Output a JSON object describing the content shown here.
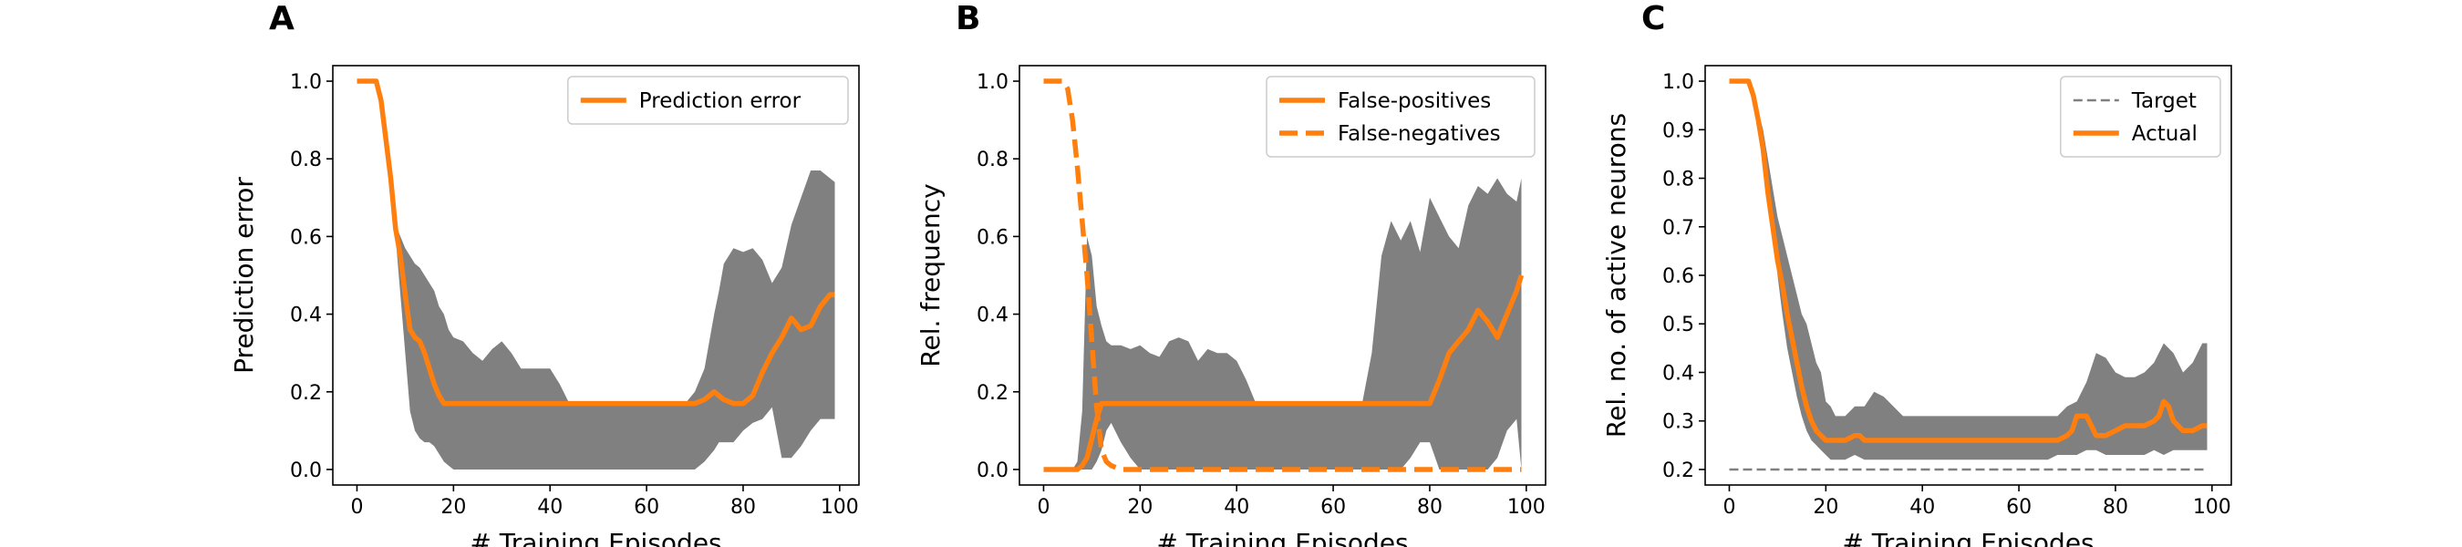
{
  "colors": {
    "line": "#ff7f0e",
    "band": "#808080",
    "target": "#808080"
  },
  "chart_data": [
    {
      "type": "line",
      "letter": "A",
      "xlabel": "# Training Episodes",
      "ylabel": "Prediction error",
      "xlim": [
        -5,
        104
      ],
      "ylim": [
        -0.04,
        1.04
      ],
      "xticks": [
        0,
        20,
        40,
        60,
        80,
        100
      ],
      "yticks": [
        0.0,
        0.2,
        0.4,
        0.6,
        0.8,
        1.0
      ],
      "ytick_labels": [
        "0.0",
        "0.2",
        "0.4",
        "0.6",
        "0.8",
        "1.0"
      ],
      "legend_position": "top-right",
      "band": {
        "x": [
          0,
          4,
          5,
          6,
          7,
          8,
          9,
          10,
          11,
          12,
          13,
          14,
          15,
          16,
          17,
          18,
          19,
          20,
          22,
          24,
          26,
          28,
          30,
          32,
          34,
          36,
          38,
          40,
          42,
          44,
          50,
          60,
          68,
          70,
          72,
          74,
          75,
          76,
          78,
          80,
          82,
          84,
          86,
          88,
          90,
          92,
          94,
          96,
          98,
          99
        ],
        "upper": [
          1.0,
          1.0,
          0.95,
          0.85,
          0.75,
          0.63,
          0.6,
          0.57,
          0.55,
          0.53,
          0.52,
          0.5,
          0.48,
          0.46,
          0.42,
          0.4,
          0.36,
          0.34,
          0.33,
          0.3,
          0.28,
          0.31,
          0.33,
          0.3,
          0.26,
          0.26,
          0.26,
          0.26,
          0.22,
          0.17,
          0.17,
          0.17,
          0.17,
          0.2,
          0.26,
          0.4,
          0.46,
          0.53,
          0.57,
          0.56,
          0.57,
          0.54,
          0.48,
          0.52,
          0.63,
          0.7,
          0.77,
          0.77,
          0.75,
          0.74
        ],
        "lower": [
          1.0,
          1.0,
          0.95,
          0.85,
          0.75,
          0.6,
          0.45,
          0.3,
          0.15,
          0.1,
          0.08,
          0.07,
          0.07,
          0.06,
          0.04,
          0.02,
          0.01,
          0.0,
          0.0,
          0.0,
          0.0,
          0.0,
          0.0,
          0.0,
          0.0,
          0.0,
          0.0,
          0.0,
          0.0,
          0.0,
          0.0,
          0.0,
          0.0,
          0.0,
          0.02,
          0.05,
          0.07,
          0.07,
          0.07,
          0.1,
          0.12,
          0.13,
          0.16,
          0.03,
          0.03,
          0.06,
          0.1,
          0.13,
          0.13,
          0.13
        ]
      },
      "series": [
        {
          "name": "Prediction error",
          "style": "solid",
          "x": [
            0,
            4,
            5,
            6,
            7,
            8,
            9,
            10,
            11,
            12,
            13,
            14,
            15,
            16,
            17,
            18,
            19,
            20,
            30,
            40,
            50,
            60,
            65,
            68,
            70,
            72,
            74,
            76,
            78,
            80,
            82,
            84,
            86,
            88,
            90,
            92,
            94,
            96,
            98,
            99
          ],
          "y": [
            1.0,
            1.0,
            0.95,
            0.85,
            0.75,
            0.62,
            0.55,
            0.45,
            0.36,
            0.34,
            0.33,
            0.3,
            0.26,
            0.22,
            0.19,
            0.17,
            0.17,
            0.17,
            0.17,
            0.17,
            0.17,
            0.17,
            0.17,
            0.17,
            0.17,
            0.18,
            0.2,
            0.18,
            0.17,
            0.17,
            0.19,
            0.25,
            0.3,
            0.34,
            0.39,
            0.36,
            0.37,
            0.42,
            0.45,
            0.45
          ]
        }
      ]
    },
    {
      "type": "line",
      "letter": "B",
      "xlabel": "# Training Episodes",
      "ylabel": "Rel. frequency",
      "xlim": [
        -5,
        104
      ],
      "ylim": [
        -0.04,
        1.04
      ],
      "xticks": [
        0,
        20,
        40,
        60,
        80,
        100
      ],
      "yticks": [
        0.0,
        0.2,
        0.4,
        0.6,
        0.8,
        1.0
      ],
      "ytick_labels": [
        "0.0",
        "0.2",
        "0.4",
        "0.6",
        "0.8",
        "1.0"
      ],
      "legend_position": "top-right",
      "band": {
        "x": [
          0,
          6,
          7,
          8,
          9,
          10,
          11,
          12,
          13,
          14,
          16,
          18,
          20,
          22,
          24,
          26,
          28,
          30,
          32,
          34,
          36,
          38,
          40,
          42,
          44,
          50,
          60,
          66,
          68,
          70,
          72,
          74,
          76,
          78,
          80,
          82,
          84,
          86,
          88,
          90,
          92,
          94,
          96,
          98,
          99
        ],
        "upper": [
          0.0,
          0.0,
          0.02,
          0.15,
          0.6,
          0.55,
          0.42,
          0.37,
          0.33,
          0.32,
          0.32,
          0.31,
          0.32,
          0.3,
          0.29,
          0.33,
          0.34,
          0.33,
          0.28,
          0.31,
          0.3,
          0.3,
          0.28,
          0.23,
          0.17,
          0.17,
          0.17,
          0.17,
          0.3,
          0.55,
          0.64,
          0.59,
          0.64,
          0.56,
          0.7,
          0.65,
          0.6,
          0.57,
          0.68,
          0.73,
          0.71,
          0.75,
          0.71,
          0.69,
          0.75
        ],
        "lower": [
          0.0,
          0.0,
          0.0,
          0.0,
          0.0,
          0.0,
          0.02,
          0.05,
          0.1,
          0.12,
          0.07,
          0.03,
          0.0,
          0.0,
          0.0,
          0.0,
          0.0,
          0.0,
          0.0,
          0.0,
          0.0,
          0.0,
          0.0,
          0.0,
          0.0,
          0.0,
          0.0,
          0.0,
          0.0,
          0.0,
          0.0,
          0.0,
          0.03,
          0.07,
          0.07,
          0.0,
          0.0,
          0.0,
          0.0,
          0.0,
          0.0,
          0.03,
          0.1,
          0.13,
          0.0
        ]
      },
      "series": [
        {
          "name": "False-positives",
          "style": "solid",
          "x": [
            0,
            6,
            7,
            8,
            9,
            10,
            11,
            12,
            13,
            20,
            30,
            40,
            50,
            60,
            70,
            78,
            80,
            82,
            84,
            86,
            88,
            90,
            92,
            94,
            96,
            98,
            99
          ],
          "y": [
            0.0,
            0.0,
            0.0,
            0.01,
            0.03,
            0.08,
            0.13,
            0.17,
            0.17,
            0.17,
            0.17,
            0.17,
            0.17,
            0.17,
            0.17,
            0.17,
            0.17,
            0.23,
            0.3,
            0.33,
            0.36,
            0.41,
            0.38,
            0.34,
            0.4,
            0.46,
            0.5
          ]
        },
        {
          "name": "False-negatives",
          "style": "dashed",
          "x": [
            0,
            4,
            5,
            6,
            7,
            8,
            9,
            10,
            11,
            12,
            13,
            14,
            16,
            18,
            20,
            30,
            40,
            50,
            60,
            70,
            80,
            90,
            99
          ],
          "y": [
            1.0,
            1.0,
            0.98,
            0.9,
            0.78,
            0.64,
            0.5,
            0.33,
            0.16,
            0.05,
            0.02,
            0.01,
            0.0,
            0.0,
            0.0,
            0.0,
            0.0,
            0.0,
            0.0,
            0.0,
            0.0,
            0.0,
            0.0
          ]
        }
      ]
    },
    {
      "type": "line",
      "letter": "C",
      "xlabel": "# Training Episodes",
      "ylabel": "Rel. no. of active neurons",
      "xlim": [
        -5,
        104
      ],
      "ylim": [
        0.168,
        1.032
      ],
      "xticks": [
        0,
        20,
        40,
        60,
        80,
        100
      ],
      "yticks": [
        0.2,
        0.3,
        0.4,
        0.5,
        0.6,
        0.7,
        0.8,
        0.9,
        1.0
      ],
      "ytick_labels": [
        "0.2",
        "0.3",
        "0.4",
        "0.5",
        "0.6",
        "0.7",
        "0.8",
        "0.9",
        "1.0"
      ],
      "legend_position": "top-right",
      "band": {
        "x": [
          0,
          4,
          5,
          6,
          7,
          8,
          9,
          10,
          11,
          12,
          13,
          14,
          15,
          16,
          17,
          18,
          19,
          20,
          21,
          22,
          24,
          26,
          28,
          30,
          32,
          34,
          36,
          40,
          50,
          60,
          66,
          68,
          70,
          72,
          74,
          76,
          78,
          80,
          82,
          84,
          86,
          88,
          90,
          92,
          94,
          96,
          98,
          99
        ],
        "upper": [
          1.0,
          1.0,
          0.98,
          0.94,
          0.9,
          0.84,
          0.78,
          0.72,
          0.68,
          0.64,
          0.6,
          0.56,
          0.52,
          0.5,
          0.46,
          0.42,
          0.4,
          0.34,
          0.33,
          0.31,
          0.31,
          0.33,
          0.33,
          0.36,
          0.35,
          0.33,
          0.31,
          0.31,
          0.31,
          0.31,
          0.31,
          0.31,
          0.33,
          0.34,
          0.38,
          0.44,
          0.43,
          0.4,
          0.39,
          0.39,
          0.4,
          0.42,
          0.46,
          0.44,
          0.4,
          0.42,
          0.46,
          0.46
        ],
        "lower": [
          1.0,
          1.0,
          0.98,
          0.93,
          0.86,
          0.78,
          0.7,
          0.6,
          0.52,
          0.45,
          0.4,
          0.35,
          0.31,
          0.28,
          0.26,
          0.25,
          0.24,
          0.23,
          0.22,
          0.22,
          0.22,
          0.23,
          0.22,
          0.22,
          0.22,
          0.22,
          0.22,
          0.22,
          0.22,
          0.22,
          0.22,
          0.23,
          0.23,
          0.23,
          0.24,
          0.24,
          0.23,
          0.23,
          0.23,
          0.23,
          0.23,
          0.24,
          0.23,
          0.24,
          0.24,
          0.24,
          0.24,
          0.24
        ]
      },
      "series": [
        {
          "name": "Target",
          "style": "dashed-thin",
          "x": [
            0,
            99
          ],
          "y": [
            0.2,
            0.2
          ]
        },
        {
          "name": "Actual",
          "style": "solid",
          "x": [
            0,
            4,
            5,
            6,
            7,
            8,
            9,
            10,
            11,
            12,
            13,
            14,
            15,
            16,
            17,
            18,
            19,
            20,
            22,
            24,
            26,
            27,
            28,
            30,
            40,
            50,
            60,
            66,
            68,
            70,
            71,
            72,
            73,
            74,
            75,
            76,
            78,
            80,
            82,
            84,
            86,
            88,
            89,
            90,
            91,
            92,
            94,
            96,
            98,
            99
          ],
          "y": [
            1.0,
            1.0,
            0.97,
            0.92,
            0.86,
            0.77,
            0.7,
            0.63,
            0.58,
            0.52,
            0.47,
            0.42,
            0.37,
            0.33,
            0.3,
            0.28,
            0.27,
            0.26,
            0.26,
            0.26,
            0.27,
            0.27,
            0.26,
            0.26,
            0.26,
            0.26,
            0.26,
            0.26,
            0.26,
            0.27,
            0.28,
            0.31,
            0.31,
            0.31,
            0.29,
            0.27,
            0.27,
            0.28,
            0.29,
            0.29,
            0.29,
            0.3,
            0.31,
            0.34,
            0.33,
            0.3,
            0.28,
            0.28,
            0.29,
            0.29
          ]
        }
      ]
    }
  ]
}
